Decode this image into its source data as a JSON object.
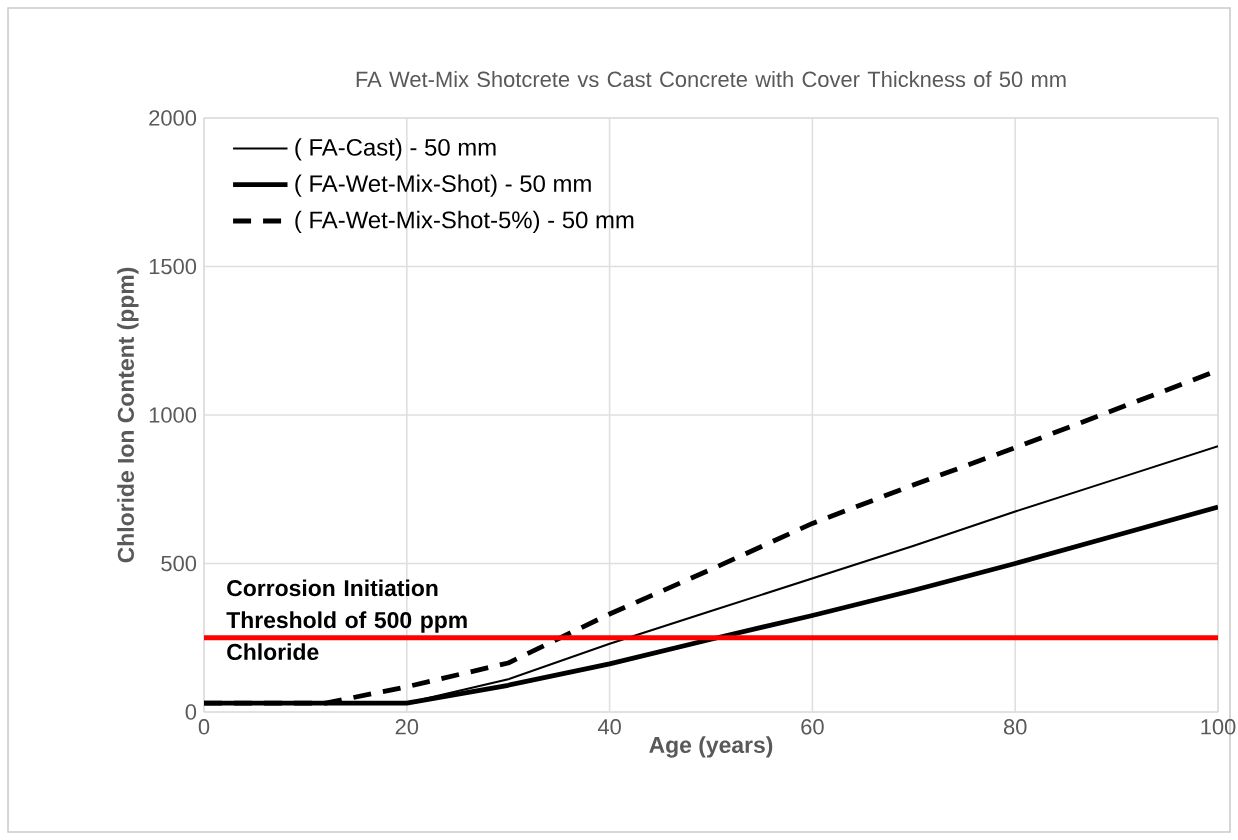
{
  "chart_data": {
    "type": "line",
    "title": "FA Wet-Mix Shotcrete vs Cast Concrete with Cover Thickness of 50 mm",
    "xlabel": "Age (years)",
    "ylabel": "Chloride Ion Content (ppm)",
    "xlim": [
      0,
      100
    ],
    "ylim": [
      0,
      2000
    ],
    "xticks": [
      0,
      20,
      40,
      60,
      80,
      100
    ],
    "yticks": [
      0,
      500,
      1000,
      1500,
      2000
    ],
    "grid": true,
    "legend": "top left",
    "marker": "none",
    "series": [
      {
        "name": "( FA-Cast) - 50 mm",
        "color": "#000000",
        "line_style": "solid",
        "x": [
          0,
          20,
          30,
          40,
          50,
          60,
          70,
          80,
          90,
          100
        ],
        "values": [
          30,
          30,
          110,
          230,
          340,
          450,
          560,
          675,
          785,
          895
        ]
      },
      {
        "name": "( FA-Wet-Mix-Shot) - 50 mm",
        "color": "#000000",
        "line_style": "solid",
        "x": [
          0,
          20,
          30,
          40,
          50,
          60,
          70,
          80,
          90,
          100
        ],
        "values": [
          30,
          30,
          90,
          162,
          245,
          325,
          410,
          500,
          595,
          690
        ]
      },
      {
        "name": "( FA-Wet-Mix-Shot-5%) - 50 mm",
        "color": "#000000",
        "line_style": "dashed",
        "x": [
          0,
          12,
          20,
          30,
          40,
          50,
          60,
          70,
          80,
          90,
          100
        ],
        "values": [
          30,
          30,
          85,
          165,
          330,
          480,
          635,
          765,
          890,
          1020,
          1150
        ]
      }
    ],
    "ref_lines": [
      {
        "axis": "y",
        "value": 250,
        "label": "Corrosion Initiation Threshold of 500 ppm Chloride",
        "color": "#ff0000"
      }
    ]
  }
}
